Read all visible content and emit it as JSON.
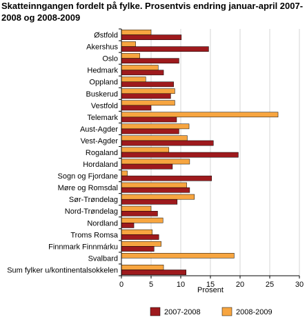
{
  "chart_data": {
    "type": "bar",
    "orientation": "horizontal",
    "title": "Skatteinngangen fordelt på fylke. Prosentvis endring januar-april 2007-2008 og 2008-2009",
    "xlabel": "Prosent",
    "ylabel": "",
    "xlim": [
      0,
      30
    ],
    "xticks": [
      "0",
      "5",
      "10",
      "15",
      "20",
      "25",
      "30"
    ],
    "grid": true,
    "legend_position": "bottom",
    "categories": [
      "Østfold",
      "Akershus",
      "Oslo",
      "Hedmark",
      "Oppland",
      "Buskerud",
      "Vestfold",
      "Telemark",
      "Aust-Agder",
      "Vest-Agder",
      "Rogaland",
      "Hordaland",
      "Sogn og Fjordane",
      "Møre og Romsdal",
      "Sør-Trøndelag",
      "Nord-Trøndelag",
      "Nordland",
      "Troms Romsa",
      "Finnmark Finnmárku",
      "Svalbard",
      "Sum fylker u/kontinentalsokkelen"
    ],
    "series": [
      {
        "name": "2007-2008",
        "color": "#9e1a1d",
        "values": [
          10.1,
          14.7,
          9.7,
          7.1,
          8.8,
          8.3,
          5.0,
          9.3,
          9.7,
          15.5,
          19.7,
          8.6,
          15.2,
          11.5,
          9.4,
          6.1,
          2.1,
          6.3,
          5.5,
          0,
          10.9
        ]
      },
      {
        "name": "2008-2009",
        "color": "#f7a540",
        "values": [
          5.0,
          2.4,
          3.1,
          6.2,
          4.1,
          9.0,
          9.0,
          26.4,
          11.4,
          11.1,
          8.0,
          11.5,
          1.0,
          11.0,
          12.3,
          5.0,
          7.0,
          5.2,
          6.7,
          19.0,
          7.1
        ]
      }
    ]
  }
}
